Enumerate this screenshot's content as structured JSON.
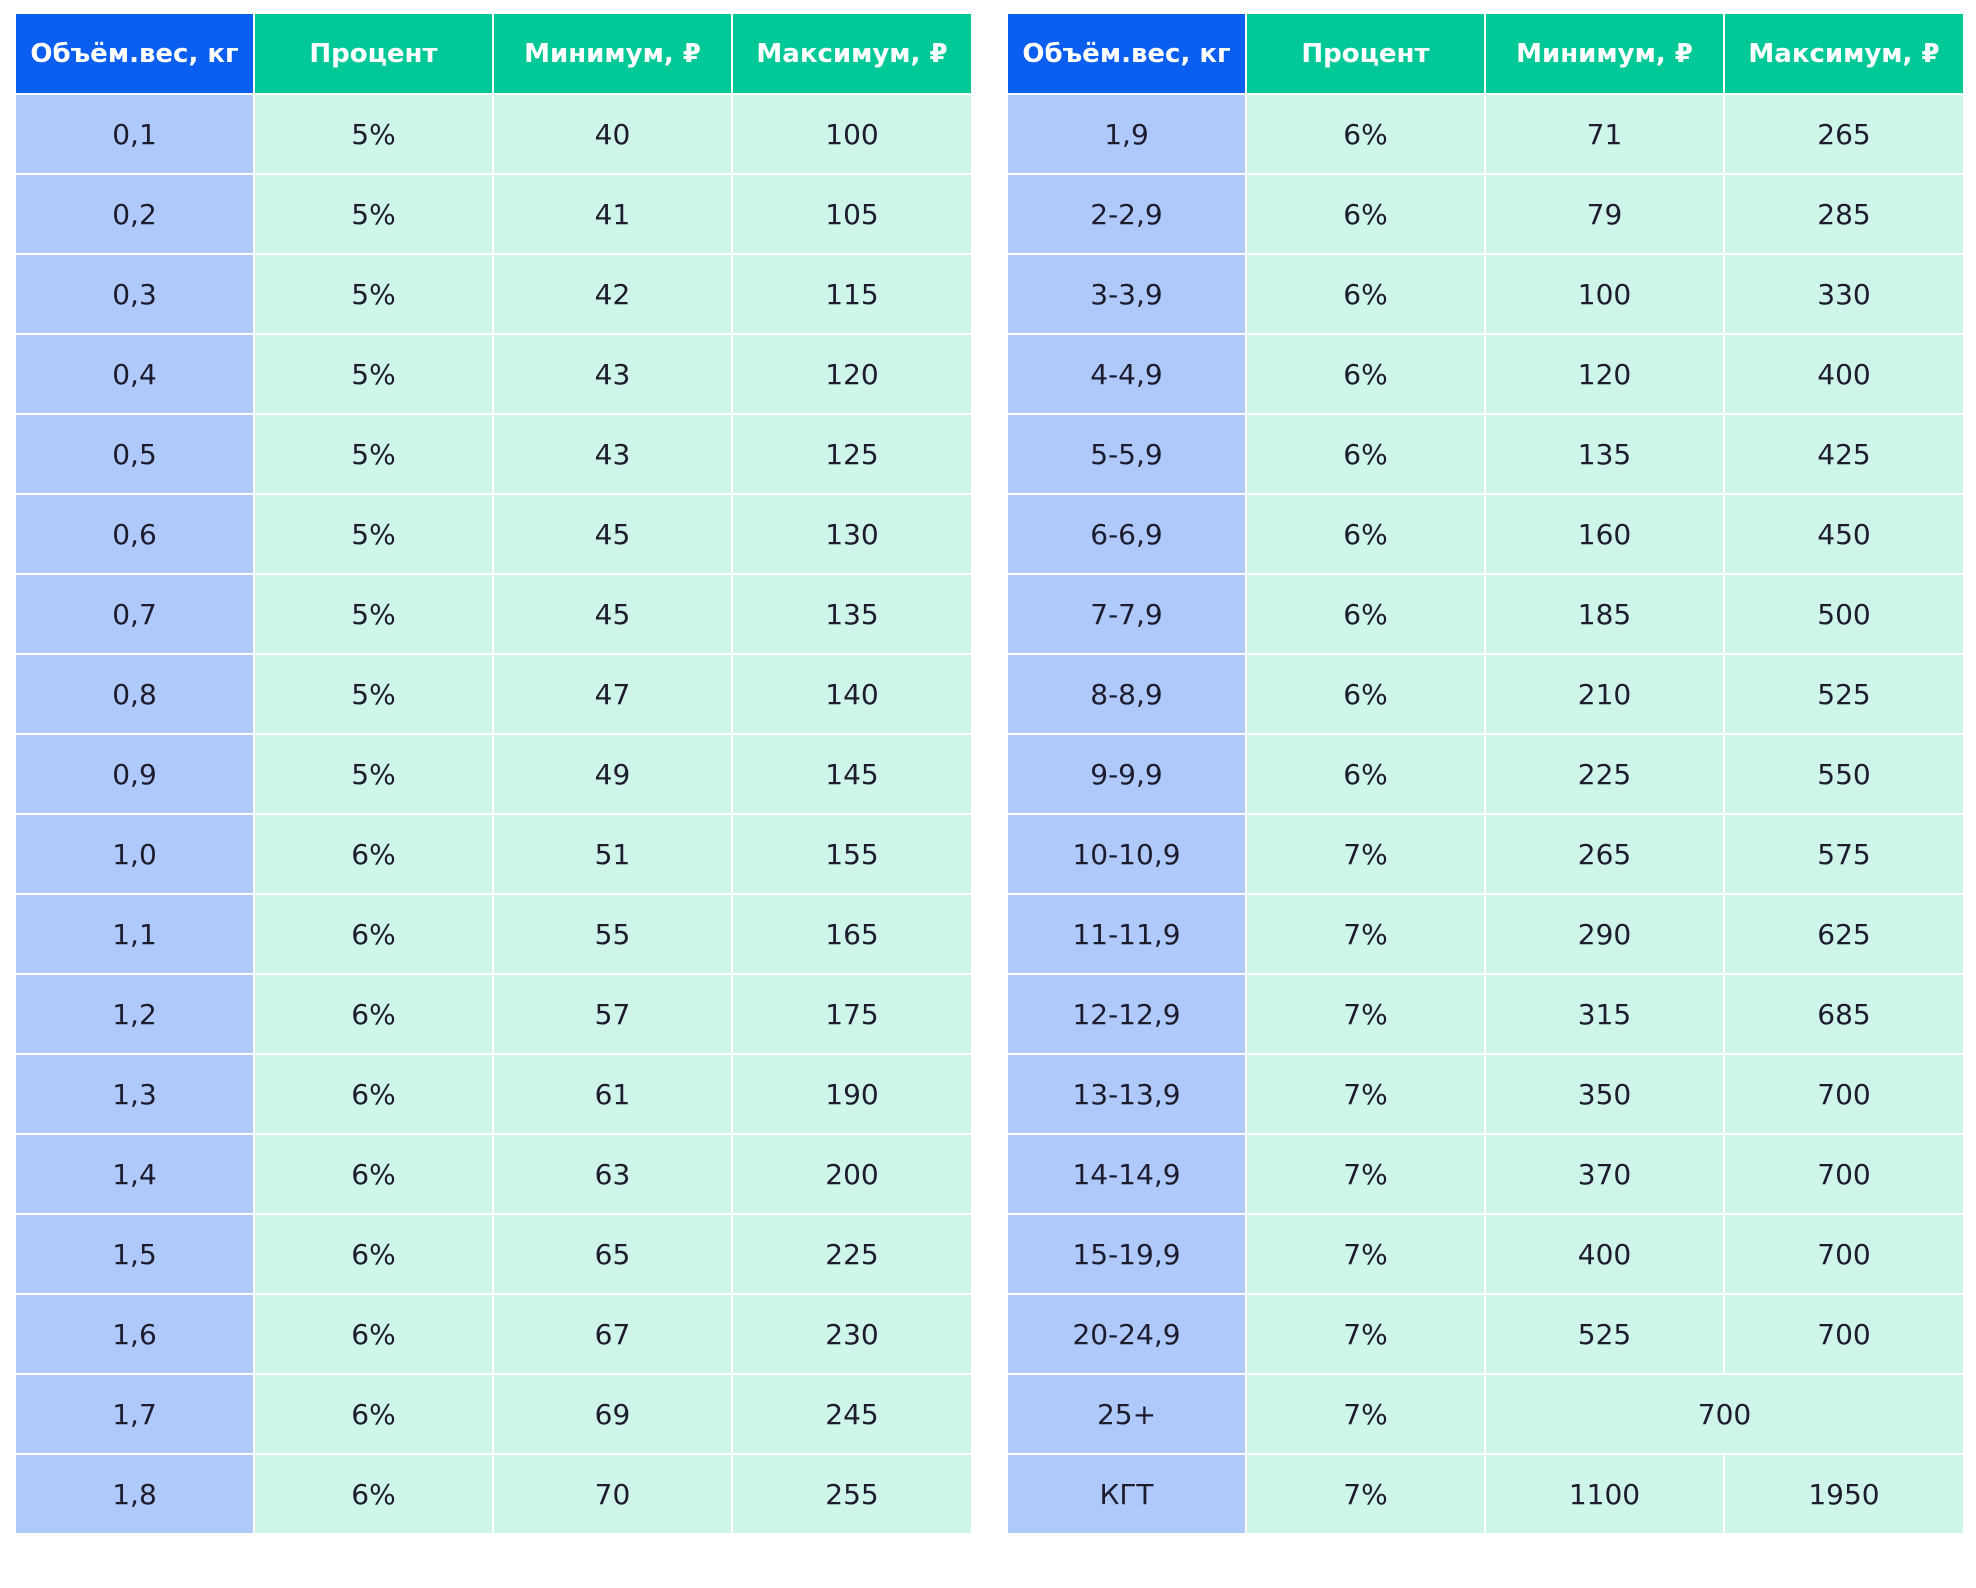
{
  "colors": {
    "header_weight_bg": "#0a5ef0",
    "header_bg": "#00c896",
    "weight_cell_bg": "#b0c9fb",
    "cell_bg": "#cff4e9"
  },
  "headers": [
    "Объём.вес, кг",
    "Процент",
    "Минимум, ₽",
    "Максимум, ₽"
  ],
  "left": [
    [
      "0,1",
      "5%",
      "40",
      "100"
    ],
    [
      "0,2",
      "5%",
      "41",
      "105"
    ],
    [
      "0,3",
      "5%",
      "42",
      "115"
    ],
    [
      "0,4",
      "5%",
      "43",
      "120"
    ],
    [
      "0,5",
      "5%",
      "43",
      "125"
    ],
    [
      "0,6",
      "5%",
      "45",
      "130"
    ],
    [
      "0,7",
      "5%",
      "45",
      "135"
    ],
    [
      "0,8",
      "5%",
      "47",
      "140"
    ],
    [
      "0,9",
      "5%",
      "49",
      "145"
    ],
    [
      "1,0",
      "6%",
      "51",
      "155"
    ],
    [
      "1,1",
      "6%",
      "55",
      "165"
    ],
    [
      "1,2",
      "6%",
      "57",
      "175"
    ],
    [
      "1,3",
      "6%",
      "61",
      "190"
    ],
    [
      "1,4",
      "6%",
      "63",
      "200"
    ],
    [
      "1,5",
      "6%",
      "65",
      "225"
    ],
    [
      "1,6",
      "6%",
      "67",
      "230"
    ],
    [
      "1,7",
      "6%",
      "69",
      "245"
    ],
    [
      "1,8",
      "6%",
      "70",
      "255"
    ]
  ],
  "right": [
    [
      "1,9",
      "6%",
      "71",
      "265"
    ],
    [
      "2-2,9",
      "6%",
      "79",
      "285"
    ],
    [
      "3-3,9",
      "6%",
      "100",
      "330"
    ],
    [
      "4-4,9",
      "6%",
      "120",
      "400"
    ],
    [
      "5-5,9",
      "6%",
      "135",
      "425"
    ],
    [
      "6-6,9",
      "6%",
      "160",
      "450"
    ],
    [
      "7-7,9",
      "6%",
      "185",
      "500"
    ],
    [
      "8-8,9",
      "6%",
      "210",
      "525"
    ],
    [
      "9-9,9",
      "6%",
      "225",
      "550"
    ],
    [
      "10-10,9",
      "7%",
      "265",
      "575"
    ],
    [
      "11-11,9",
      "7%",
      "290",
      "625"
    ],
    [
      "12-12,9",
      "7%",
      "315",
      "685"
    ],
    [
      "13-13,9",
      "7%",
      "350",
      "700"
    ],
    [
      "14-14,9",
      "7%",
      "370",
      "700"
    ],
    [
      "15-19,9",
      "7%",
      "400",
      "700"
    ],
    [
      "20-24,9",
      "7%",
      "525",
      "700"
    ],
    [
      "25+",
      "7%",
      "700"
    ],
    [
      "КГТ",
      "7%",
      "1100",
      "1950"
    ]
  ]
}
